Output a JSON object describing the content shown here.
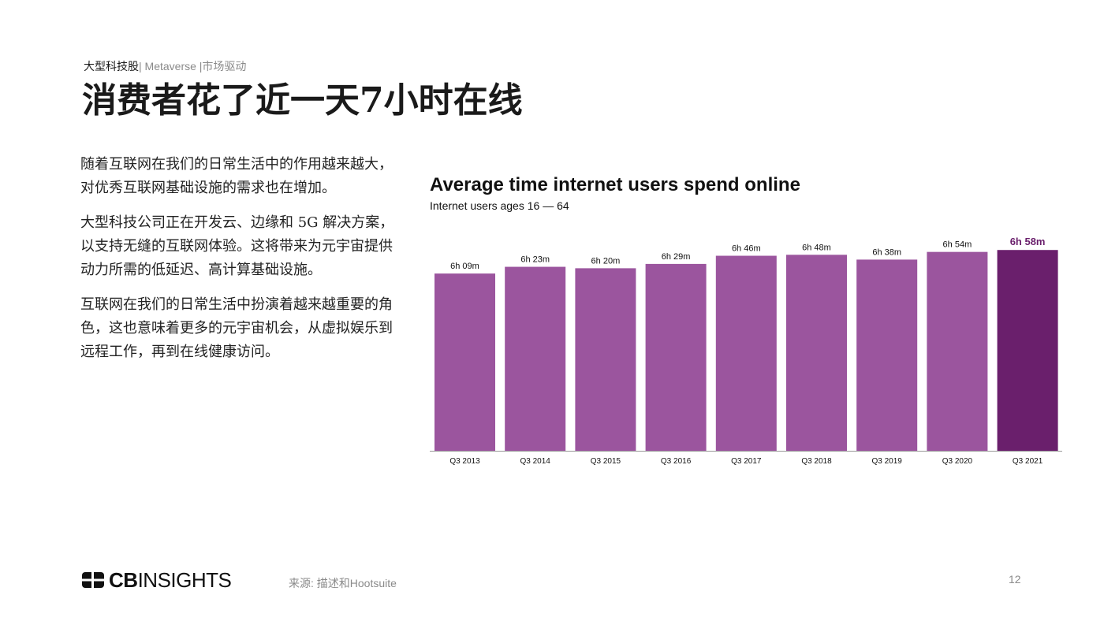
{
  "header": {
    "breadcrumb_main": "大型科技股",
    "breadcrumb_sep1": "| ",
    "breadcrumb_mid": "Metaverse",
    "breadcrumb_sep2": " |",
    "breadcrumb_end": "市场驱动",
    "title": "消费者花了近一天7小时在线"
  },
  "body": {
    "paragraphs": [
      "随着互联网在我们的日常生活中的作用越来越大，对优秀互联网基础设施的需求也在增加。",
      "大型科技公司正在开发云、边缘和 5G 解决方案，以支持无缝的互联网体验。这将带来为元宇宙提供动力所需的低延迟、高计算基础设施。",
      "互联网在我们的日常生活中扮演着越来越重要的角色，这也意味着更多的元宇宙机会，从虚拟娱乐到远程工作，再到在线健康访问。"
    ]
  },
  "chart_data": {
    "type": "bar",
    "title": "Average time internet users spend online",
    "subtitle": "Internet users ages 16 — 64",
    "categories": [
      "Q3 2013",
      "Q3 2014",
      "Q3 2015",
      "Q3 2016",
      "Q3 2017",
      "Q3 2018",
      "Q3 2019",
      "Q3 2020",
      "Q3 2021"
    ],
    "values": [
      369,
      383,
      380,
      389,
      406,
      408,
      398,
      414,
      418
    ],
    "value_labels": [
      "6h 09m",
      "6h 23m",
      "6h 20m",
      "6h 29m",
      "6h 46m",
      "6h 48m",
      "6h 38m",
      "6h 54m",
      "6h 58m"
    ],
    "unit": "minutes",
    "ylim": [
      0,
      420
    ],
    "grid": false,
    "highlight_index": 8,
    "colors": {
      "bar": "#9b559e",
      "highlight": "#6a1f6c",
      "highlight_label": "#6a1f6c",
      "axis": "#999999"
    }
  },
  "footer": {
    "logo_bold": "CB",
    "logo_light": "INSIGHTS",
    "source": "来源: 描述和Hootsuite",
    "page_number": "12"
  }
}
